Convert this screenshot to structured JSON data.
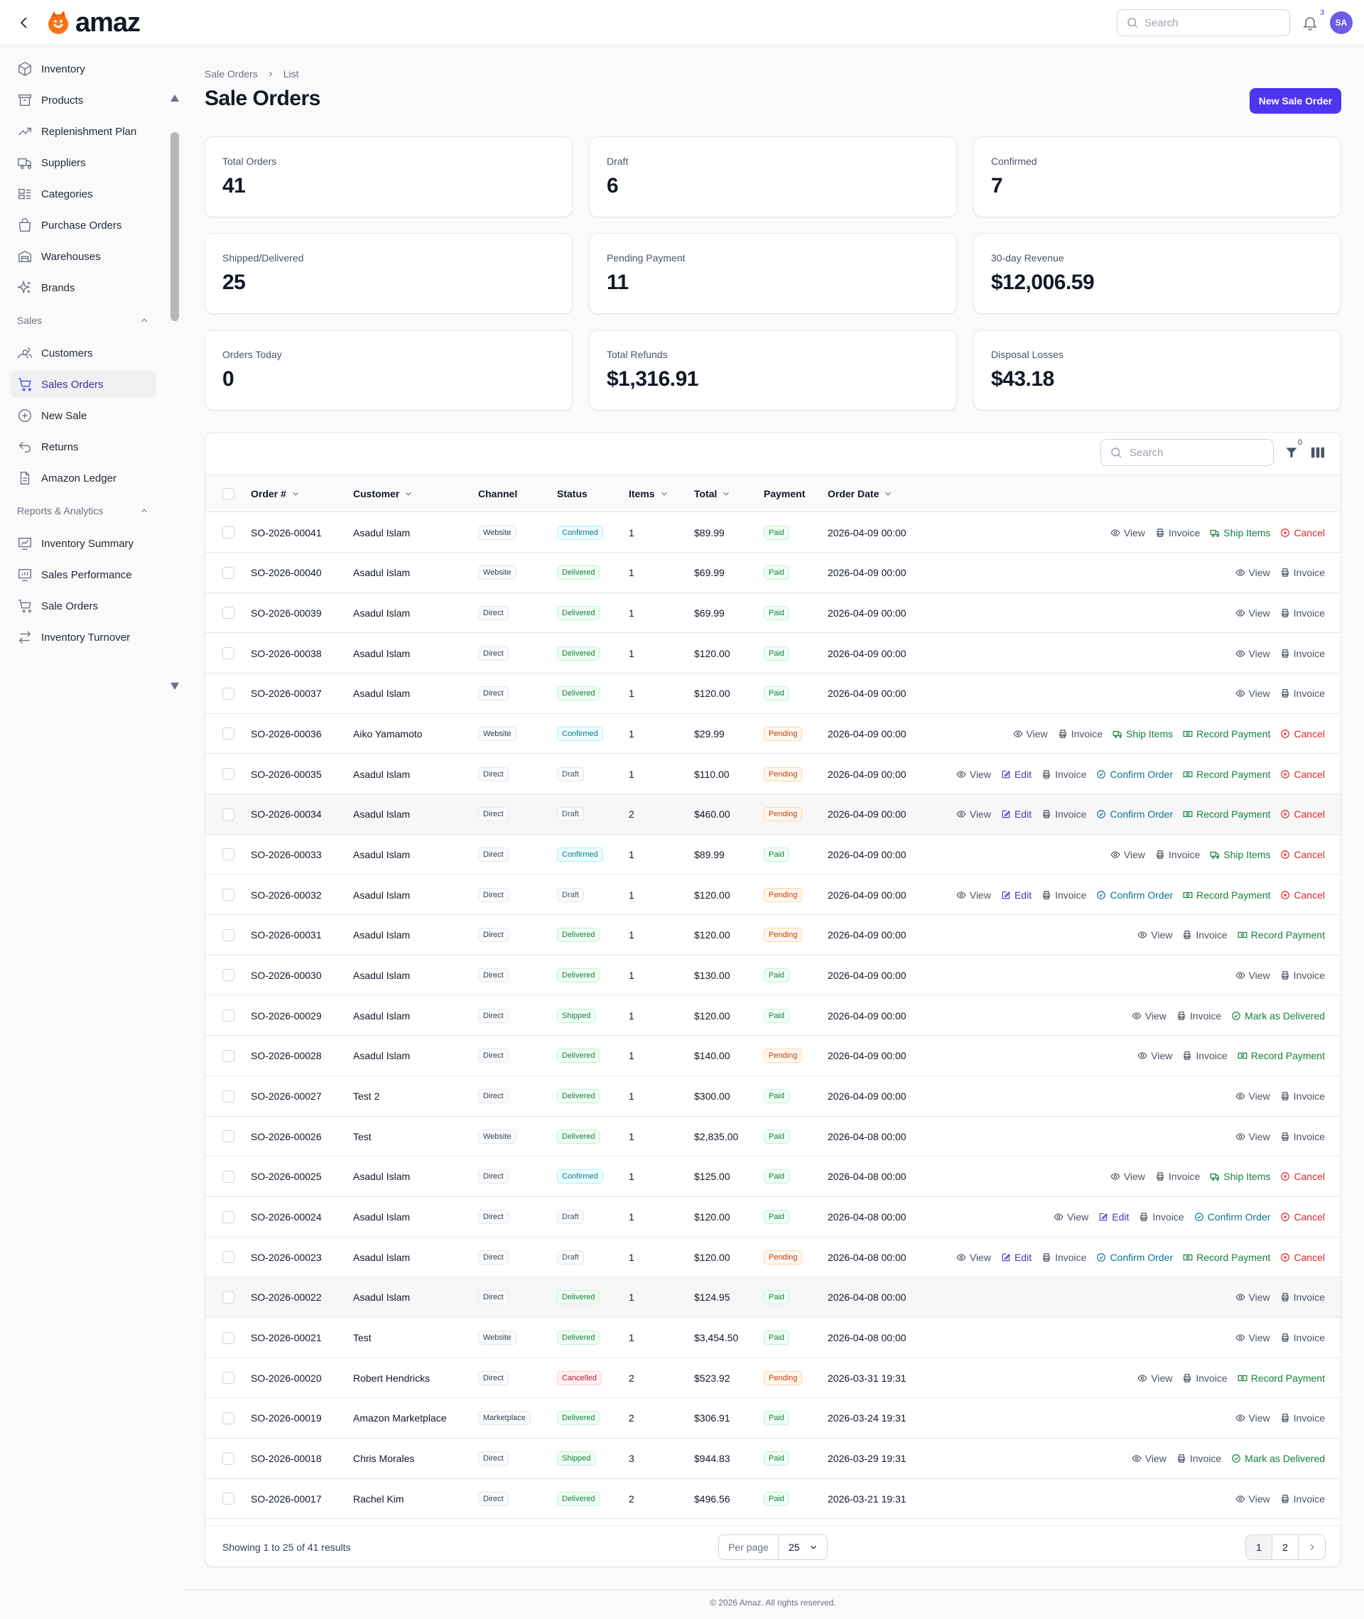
{
  "app": {
    "logo_text": "amaz",
    "search_placeholder": "Search",
    "notification_count": "3",
    "avatar_initials": "SA"
  },
  "sidebar": {
    "inventory_items": [
      {
        "label": "Inventory",
        "icon": "cube-icon"
      },
      {
        "label": "Products",
        "icon": "archive-box-icon"
      },
      {
        "label": "Replenishment Plan",
        "icon": "trend-up-icon"
      },
      {
        "label": "Suppliers",
        "icon": "truck-icon"
      },
      {
        "label": "Categories",
        "icon": "category-icon"
      },
      {
        "label": "Purchase Orders",
        "icon": "shopping-bag-icon"
      },
      {
        "label": "Warehouses",
        "icon": "warehouse-icon"
      },
      {
        "label": "Brands",
        "icon": "sparkles-icon"
      }
    ],
    "sales_group": "Sales",
    "sales_items": [
      {
        "label": "Customers",
        "icon": "users-icon"
      },
      {
        "label": "Sales Orders",
        "icon": "cart-icon",
        "active": true
      },
      {
        "label": "New Sale",
        "icon": "plus-circle-icon"
      },
      {
        "label": "Returns",
        "icon": "return-arrow-icon"
      },
      {
        "label": "Amazon Ledger",
        "icon": "document-icon"
      }
    ],
    "reports_group": "Reports & Analytics",
    "reports_items": [
      {
        "label": "Inventory Summary",
        "icon": "chart-box-icon"
      },
      {
        "label": "Sales Performance",
        "icon": "chart-bar-icon"
      },
      {
        "label": "Sale Orders",
        "icon": "cart-icon"
      },
      {
        "label": "Inventory Turnover",
        "icon": "arrows-exchange-icon"
      }
    ]
  },
  "page": {
    "breadcrumb": [
      "Sale Orders",
      "List"
    ],
    "title": "Sale Orders",
    "new_button": "New Sale Order"
  },
  "stats": [
    {
      "label": "Total Orders",
      "value": "41"
    },
    {
      "label": "Draft",
      "value": "6"
    },
    {
      "label": "Confirmed",
      "value": "7"
    },
    {
      "label": "Shipped/Delivered",
      "value": "25"
    },
    {
      "label": "Pending Payment",
      "value": "11"
    },
    {
      "label": "30-day Revenue",
      "value": "$12,006.59"
    },
    {
      "label": "Orders Today",
      "value": "0"
    },
    {
      "label": "Total Refunds",
      "value": "$1,316.91"
    },
    {
      "label": "Disposal Losses",
      "value": "$43.18"
    }
  ],
  "table": {
    "search_placeholder": "Search",
    "filter_count": "0",
    "columns": {
      "order": "Order #",
      "customer": "Customer",
      "channel": "Channel",
      "status": "Status",
      "items": "Items",
      "total": "Total",
      "payment": "Payment",
      "date": "Order Date"
    },
    "action_labels": {
      "view": "View",
      "edit": "Edit",
      "invoice": "Invoice",
      "confirm": "Confirm Order",
      "ship": "Ship Items",
      "record": "Record Payment",
      "deliver": "Mark as Delivered",
      "cancel": "Cancel"
    },
    "rows": [
      {
        "order": "SO-2026-00041",
        "customer": "Asadul Islam",
        "channel": "Website",
        "status": "Confirmed",
        "items": "1",
        "total": "$89.99",
        "payment": "Paid",
        "date": "2026-04-09 00:00",
        "actions": [
          "view",
          "invoice",
          "ship",
          "cancel"
        ]
      },
      {
        "order": "SO-2026-00040",
        "customer": "Asadul Islam",
        "channel": "Website",
        "status": "Delivered",
        "items": "1",
        "total": "$69.99",
        "payment": "Paid",
        "date": "2026-04-09 00:00",
        "actions": [
          "view",
          "invoice"
        ]
      },
      {
        "order": "SO-2026-00039",
        "customer": "Asadul Islam",
        "channel": "Direct",
        "status": "Delivered",
        "items": "1",
        "total": "$69.99",
        "payment": "Paid",
        "date": "2026-04-09 00:00",
        "actions": [
          "view",
          "invoice"
        ]
      },
      {
        "order": "SO-2026-00038",
        "customer": "Asadul Islam",
        "channel": "Direct",
        "status": "Delivered",
        "items": "1",
        "total": "$120.00",
        "payment": "Paid",
        "date": "2026-04-09 00:00",
        "actions": [
          "view",
          "invoice"
        ]
      },
      {
        "order": "SO-2026-00037",
        "customer": "Asadul Islam",
        "channel": "Direct",
        "status": "Delivered",
        "items": "1",
        "total": "$120.00",
        "payment": "Paid",
        "date": "2026-04-09 00:00",
        "actions": [
          "view",
          "invoice"
        ]
      },
      {
        "order": "SO-2026-00036",
        "customer": "Aiko Yamamoto",
        "channel": "Website",
        "status": "Confirmed",
        "items": "1",
        "total": "$29.99",
        "payment": "Pending",
        "date": "2026-04-09 00:00",
        "actions": [
          "view",
          "invoice",
          "ship",
          "record",
          "cancel"
        ]
      },
      {
        "order": "SO-2026-00035",
        "customer": "Asadul Islam",
        "channel": "Direct",
        "status": "Draft",
        "items": "1",
        "total": "$110.00",
        "payment": "Pending",
        "date": "2026-04-09 00:00",
        "actions": [
          "view",
          "edit",
          "invoice",
          "confirm",
          "record",
          "cancel"
        ]
      },
      {
        "order": "SO-2026-00034",
        "customer": "Asadul Islam",
        "channel": "Direct",
        "status": "Draft",
        "items": "2",
        "total": "$460.00",
        "payment": "Pending",
        "date": "2026-04-09 00:00",
        "actions": [
          "view",
          "edit",
          "invoice",
          "confirm",
          "record",
          "cancel"
        ],
        "highlight": true
      },
      {
        "order": "SO-2026-00033",
        "customer": "Asadul Islam",
        "channel": "Direct",
        "status": "Confirmed",
        "items": "1",
        "total": "$89.99",
        "payment": "Paid",
        "date": "2026-04-09 00:00",
        "actions": [
          "view",
          "invoice",
          "ship",
          "cancel"
        ]
      },
      {
        "order": "SO-2026-00032",
        "customer": "Asadul Islam",
        "channel": "Direct",
        "status": "Draft",
        "items": "1",
        "total": "$120.00",
        "payment": "Pending",
        "date": "2026-04-09 00:00",
        "actions": [
          "view",
          "edit",
          "invoice",
          "confirm",
          "record",
          "cancel"
        ]
      },
      {
        "order": "SO-2026-00031",
        "customer": "Asadul Islam",
        "channel": "Direct",
        "status": "Delivered",
        "items": "1",
        "total": "$120.00",
        "payment": "Pending",
        "date": "2026-04-09 00:00",
        "actions": [
          "view",
          "invoice",
          "record"
        ]
      },
      {
        "order": "SO-2026-00030",
        "customer": "Asadul Islam",
        "channel": "Direct",
        "status": "Delivered",
        "items": "1",
        "total": "$130.00",
        "payment": "Paid",
        "date": "2026-04-09 00:00",
        "actions": [
          "view",
          "invoice"
        ]
      },
      {
        "order": "SO-2026-00029",
        "customer": "Asadul Islam",
        "channel": "Direct",
        "status": "Shipped",
        "items": "1",
        "total": "$120.00",
        "payment": "Paid",
        "date": "2026-04-09 00:00",
        "actions": [
          "view",
          "invoice",
          "deliver"
        ]
      },
      {
        "order": "SO-2026-00028",
        "customer": "Asadul Islam",
        "channel": "Direct",
        "status": "Delivered",
        "items": "1",
        "total": "$140.00",
        "payment": "Pending",
        "date": "2026-04-09 00:00",
        "actions": [
          "view",
          "invoice",
          "record"
        ]
      },
      {
        "order": "SO-2026-00027",
        "customer": "Test 2",
        "channel": "Direct",
        "status": "Delivered",
        "items": "1",
        "total": "$300.00",
        "payment": "Paid",
        "date": "2026-04-09 00:00",
        "actions": [
          "view",
          "invoice"
        ]
      },
      {
        "order": "SO-2026-00026",
        "customer": "Test",
        "channel": "Website",
        "status": "Delivered",
        "items": "1",
        "total": "$2,835.00",
        "payment": "Paid",
        "date": "2026-04-08 00:00",
        "actions": [
          "view",
          "invoice"
        ]
      },
      {
        "order": "SO-2026-00025",
        "customer": "Asadul Islam",
        "channel": "Direct",
        "status": "Confirmed",
        "items": "1",
        "total": "$125.00",
        "payment": "Paid",
        "date": "2026-04-08 00:00",
        "actions": [
          "view",
          "invoice",
          "ship",
          "cancel"
        ]
      },
      {
        "order": "SO-2026-00024",
        "customer": "Asadul Islam",
        "channel": "Direct",
        "status": "Draft",
        "items": "1",
        "total": "$120.00",
        "payment": "Paid",
        "date": "2026-04-08 00:00",
        "actions": [
          "view",
          "edit",
          "invoice",
          "confirm",
          "cancel"
        ]
      },
      {
        "order": "SO-2026-00023",
        "customer": "Asadul Islam",
        "channel": "Direct",
        "status": "Draft",
        "items": "1",
        "total": "$120.00",
        "payment": "Pending",
        "date": "2026-04-08 00:00",
        "actions": [
          "view",
          "edit",
          "invoice",
          "confirm",
          "record",
          "cancel"
        ]
      },
      {
        "order": "SO-2026-00022",
        "customer": "Asadul Islam",
        "channel": "Direct",
        "status": "Delivered",
        "items": "1",
        "total": "$124.95",
        "payment": "Paid",
        "date": "2026-04-08 00:00",
        "actions": [
          "view",
          "invoice"
        ],
        "highlight": true
      },
      {
        "order": "SO-2026-00021",
        "customer": "Test",
        "channel": "Website",
        "status": "Delivered",
        "items": "1",
        "total": "$3,454.50",
        "payment": "Paid",
        "date": "2026-04-08 00:00",
        "actions": [
          "view",
          "invoice"
        ]
      },
      {
        "order": "SO-2026-00020",
        "customer": "Robert Hendricks",
        "channel": "Direct",
        "status": "Cancelled",
        "items": "2",
        "total": "$523.92",
        "payment": "Pending",
        "date": "2026-03-31 19:31",
        "actions": [
          "view",
          "invoice",
          "record"
        ]
      },
      {
        "order": "SO-2026-00019",
        "customer": "Amazon Marketplace",
        "channel": "Marketplace",
        "status": "Delivered",
        "items": "2",
        "total": "$306.91",
        "payment": "Paid",
        "date": "2026-03-24 19:31",
        "actions": [
          "view",
          "invoice"
        ]
      },
      {
        "order": "SO-2026-00018",
        "customer": "Chris Morales",
        "channel": "Direct",
        "status": "Shipped",
        "items": "3",
        "total": "$944.83",
        "payment": "Paid",
        "date": "2026-03-29 19:31",
        "actions": [
          "view",
          "invoice",
          "deliver"
        ]
      },
      {
        "order": "SO-2026-00017",
        "customer": "Rachel Kim",
        "channel": "Direct",
        "status": "Delivered",
        "items": "2",
        "total": "$496.56",
        "payment": "Paid",
        "date": "2026-03-21 19:31",
        "actions": [
          "view",
          "invoice"
        ]
      }
    ],
    "showing": "Showing 1 to 25 of 41 results",
    "per_page_label": "Per page",
    "per_page_value": "25",
    "pages": [
      "1",
      "2"
    ]
  },
  "footer": {
    "copyright": "© 2026 Amaz. All rights reserved."
  },
  "colors": {
    "accent": "#4f34f0",
    "active_nav": "#3730a3",
    "danger": "#dc2626",
    "success": "#15803d"
  }
}
